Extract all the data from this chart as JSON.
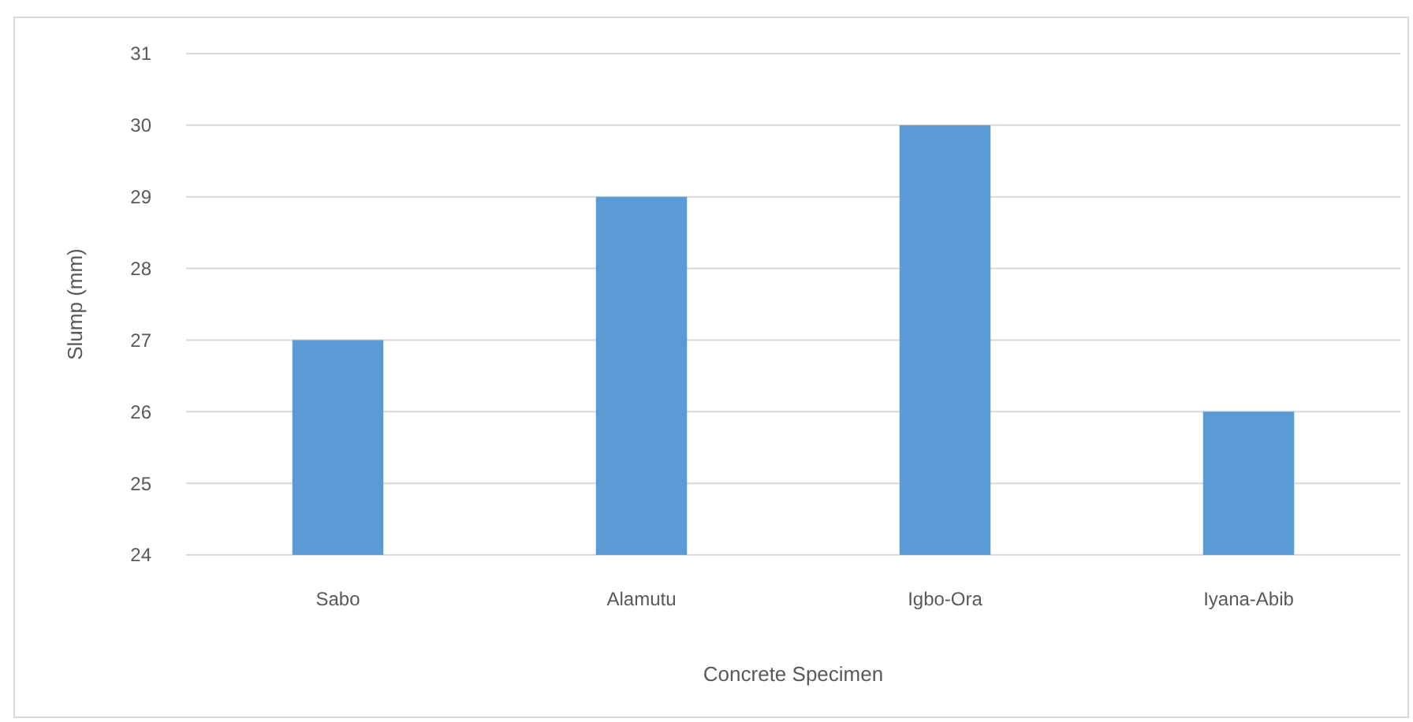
{
  "chart_data": {
    "type": "bar",
    "xlabel": "Concrete Specimen",
    "ylabel": "Slump (mm)",
    "categories": [
      "Sabo",
      "Alamutu",
      "Igbo-Ora",
      "Iyana-Abib"
    ],
    "values": [
      27,
      29,
      30,
      26
    ],
    "color": "#5b9bd5",
    "ylim": [
      24,
      31
    ],
    "yticks": [
      24,
      25,
      26,
      27,
      28,
      29,
      30,
      31
    ],
    "grid": "y"
  }
}
